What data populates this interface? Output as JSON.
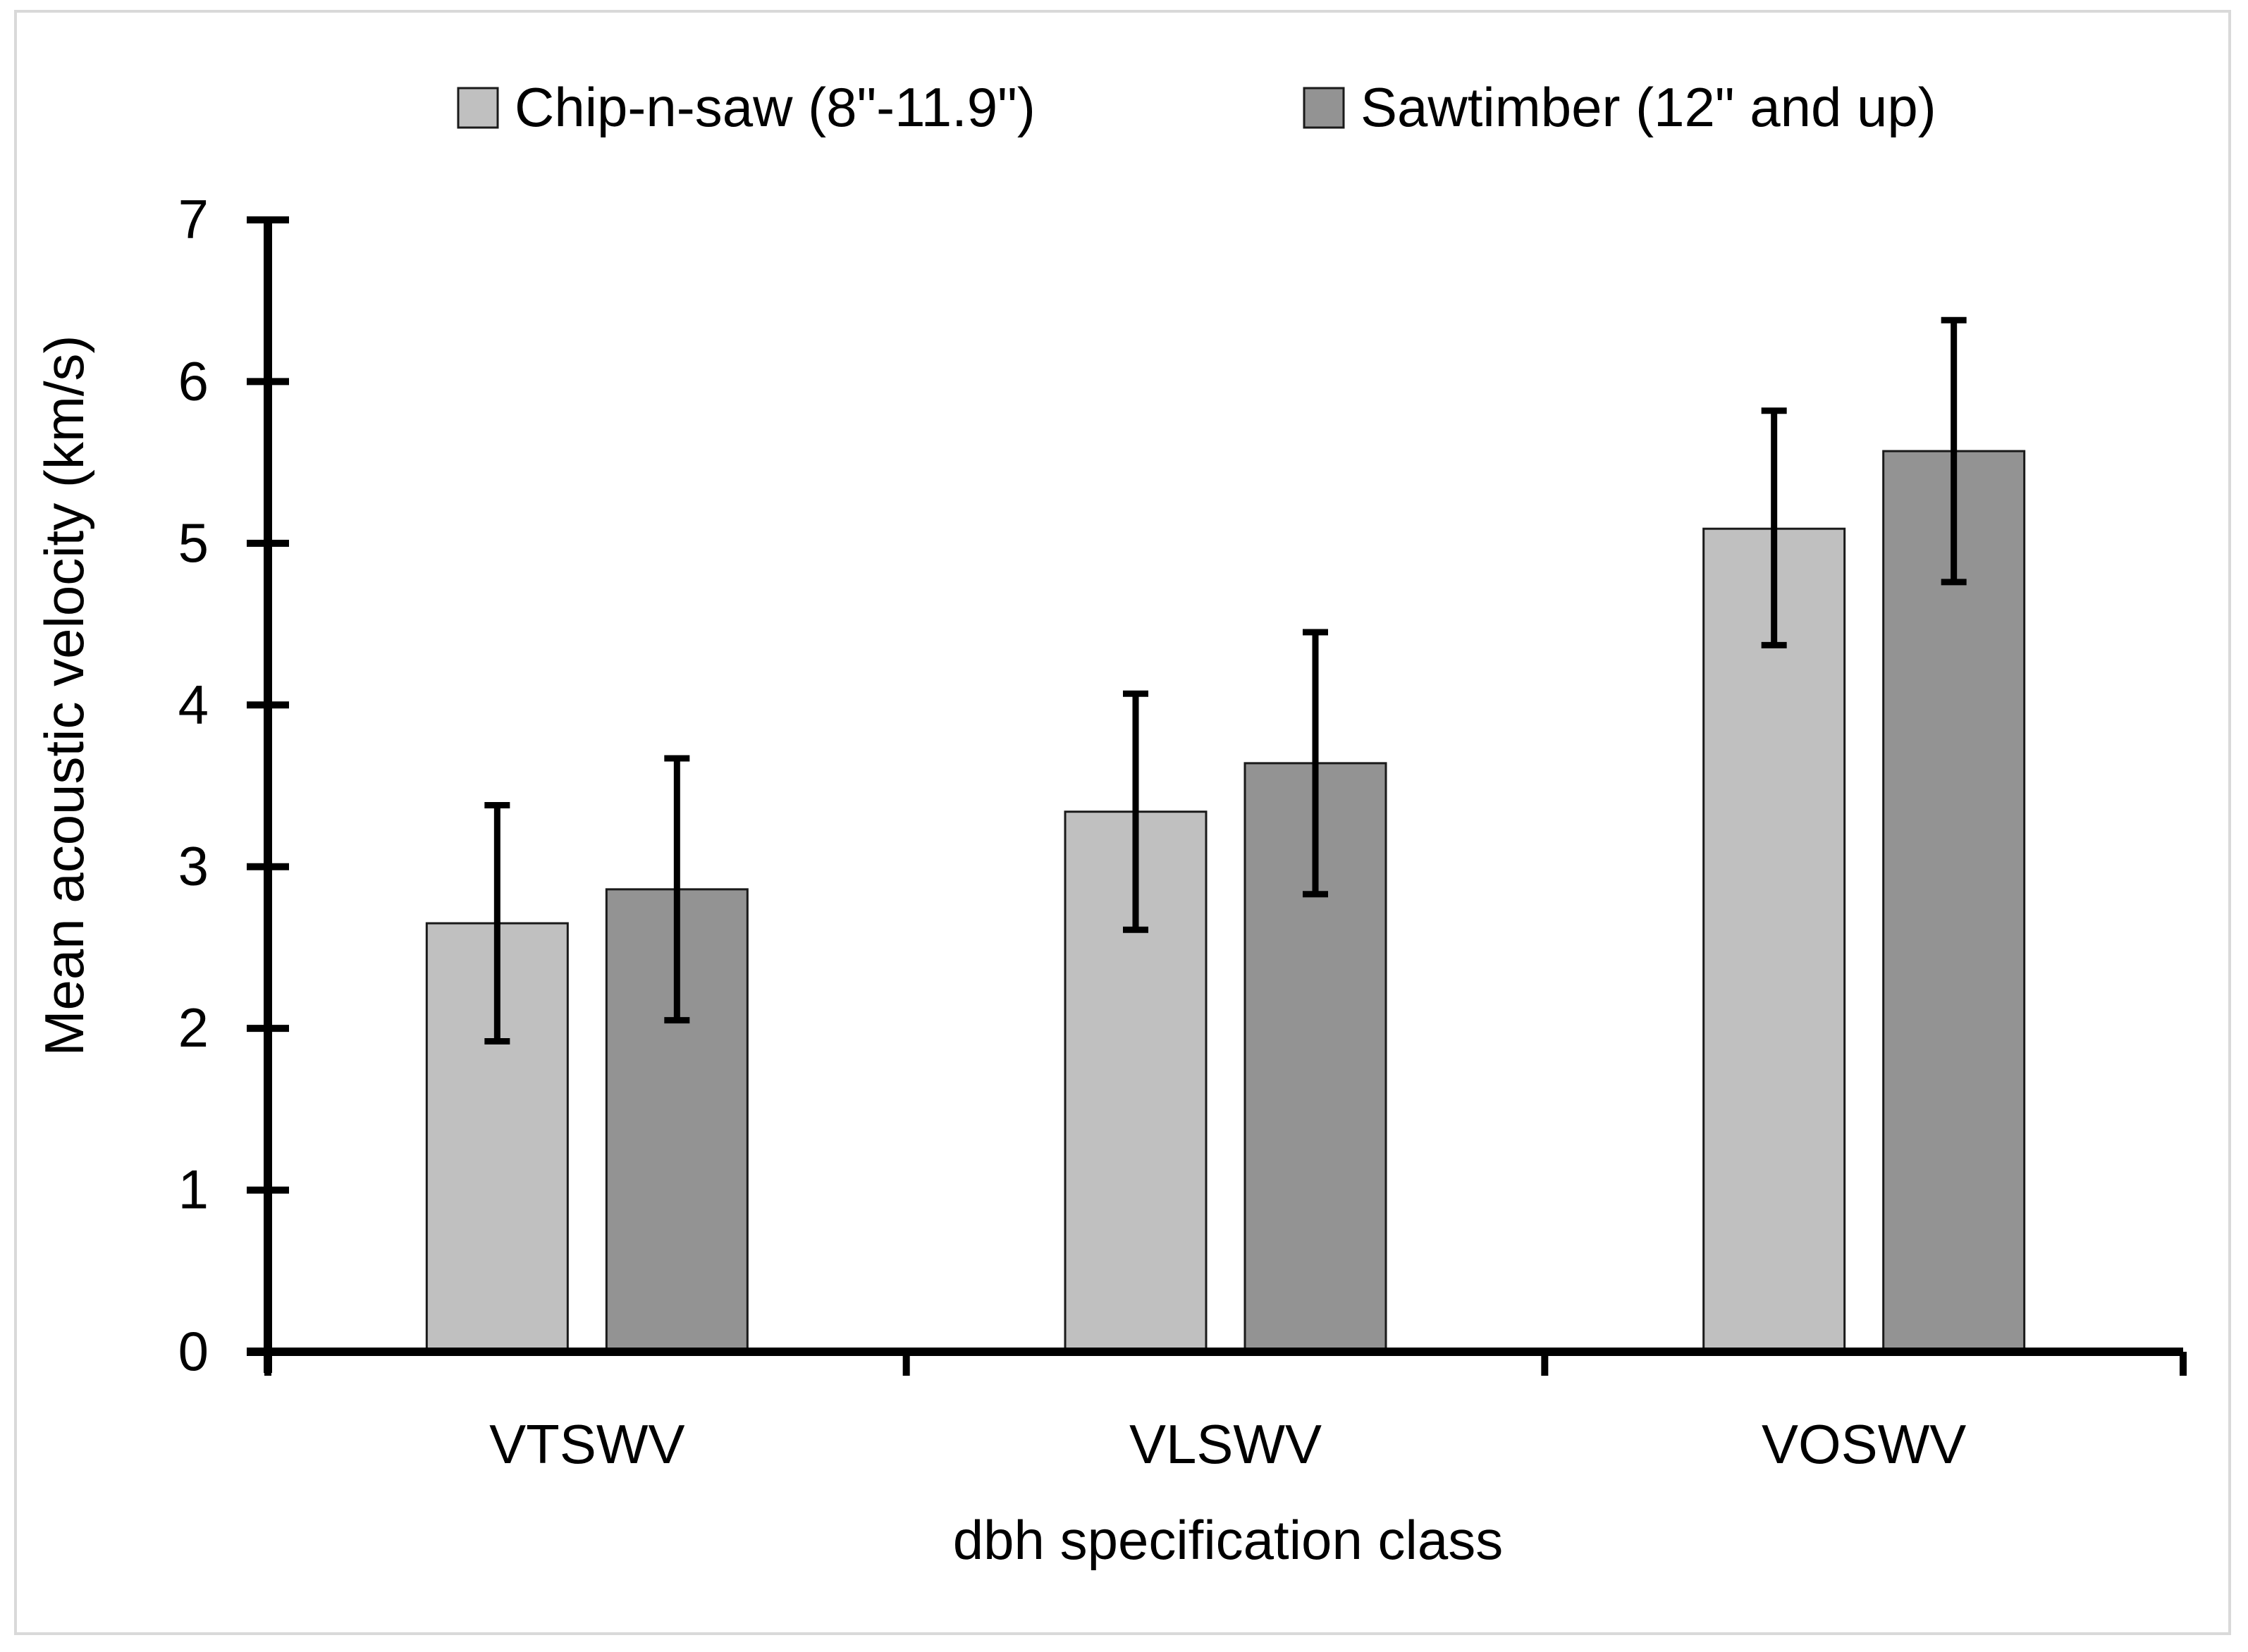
{
  "chart_data": {
    "type": "bar",
    "title": "",
    "xlabel": "dbh specification class",
    "ylabel": "Mean acoustic velocity (km/s)",
    "ylim": [
      0,
      7
    ],
    "yticks": [
      "0",
      "1",
      "2",
      "3",
      "4",
      "5",
      "6",
      "7"
    ],
    "categories": [
      "VTSWV",
      "VLSWV",
      "VOSWV"
    ],
    "legend_position": "top",
    "series": [
      {
        "name": "Chip-n-saw (8\"-11.9\")",
        "color": "#c0c0c0",
        "values": [
          2.65,
          3.34,
          5.09
        ],
        "error_low": [
          1.92,
          2.61,
          4.37
        ],
        "error_high": [
          3.38,
          4.07,
          5.82
        ]
      },
      {
        "name": "Sawtimber (12\" and up)",
        "color": "#939393",
        "values": [
          2.86,
          3.64,
          5.57
        ],
        "error_low": [
          2.05,
          2.83,
          4.76
        ],
        "error_high": [
          3.67,
          4.45,
          6.38
        ]
      }
    ]
  }
}
